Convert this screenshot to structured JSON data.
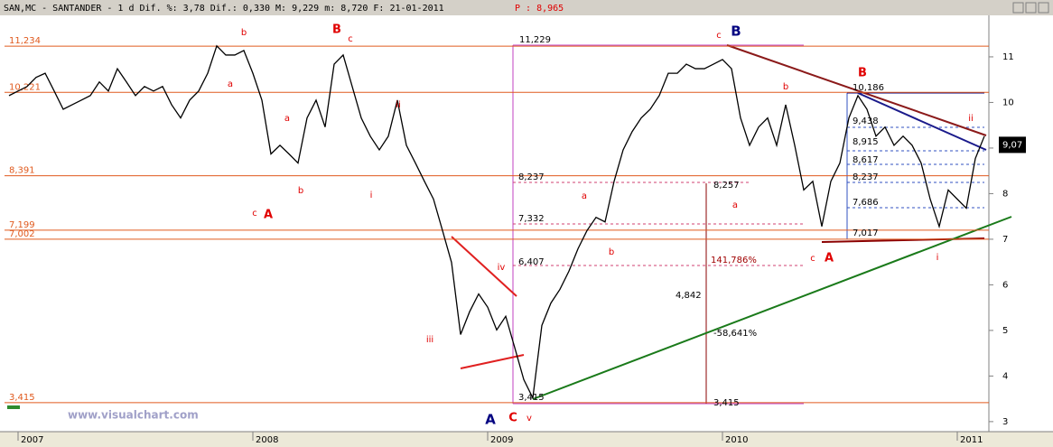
{
  "chart_data": {
    "type": "line",
    "title": "SAN,MC - SANTANDER -  1 d Dif. %: 3,78 Dif.: 0,330 M: 9,229 m: 8,720 F: 21-01-2011",
    "price_label": "P : 8,965",
    "watermark": "www.visualchart.com",
    "color": "#000000",
    "categories": [
      null,
      "2007",
      null,
      null,
      null,
      null,
      null,
      null,
      null,
      null,
      null,
      null,
      null,
      null,
      null,
      null,
      null,
      null,
      null,
      null,
      null,
      null,
      null,
      null,
      null,
      null,
      null,
      "2008",
      null,
      null,
      null,
      null,
      null,
      null,
      null,
      null,
      null,
      null,
      null,
      null,
      null,
      null,
      null,
      null,
      null,
      null,
      null,
      null,
      null,
      null,
      null,
      null,
      null,
      "2009",
      null,
      null,
      null,
      null,
      null,
      null,
      null,
      null,
      null,
      null,
      null,
      null,
      null,
      null,
      null,
      null,
      null,
      null,
      null,
      null,
      null,
      null,
      null,
      null,
      null,
      "2010",
      null,
      null,
      null,
      null,
      null,
      null,
      null,
      null,
      null,
      null,
      null,
      null,
      null,
      null,
      null,
      null,
      null,
      null,
      null,
      null,
      null,
      null,
      null,
      null,
      null,
      "2011",
      null,
      null,
      null
    ],
    "values": [
      10.15,
      10.25,
      10.35,
      10.55,
      10.64,
      10.25,
      9.85,
      9.95,
      10.05,
      10.15,
      10.45,
      10.25,
      10.74,
      10.45,
      10.15,
      10.35,
      10.25,
      10.35,
      9.95,
      9.66,
      10.05,
      10.25,
      10.64,
      11.24,
      11.04,
      11.04,
      11.14,
      10.64,
      10.05,
      8.87,
      9.06,
      8.87,
      8.67,
      9.66,
      10.05,
      9.46,
      10.84,
      11.04,
      10.35,
      9.66,
      9.26,
      8.96,
      9.26,
      10.05,
      9.06,
      8.67,
      8.27,
      7.88,
      7.19,
      6.49,
      4.91,
      5.41,
      5.8,
      5.51,
      5.01,
      5.31,
      4.62,
      3.92,
      3.52,
      5.11,
      5.6,
      5.9,
      6.3,
      6.79,
      7.19,
      7.48,
      7.38,
      8.27,
      8.96,
      9.36,
      9.66,
      9.85,
      10.15,
      10.64,
      10.64,
      10.84,
      10.74,
      10.74,
      10.84,
      10.94,
      10.74,
      9.66,
      9.06,
      9.46,
      9.66,
      9.06,
      9.95,
      9.06,
      8.08,
      8.27,
      7.28,
      8.27,
      8.67,
      9.66,
      10.15,
      9.85,
      9.26,
      9.46,
      9.06,
      9.26,
      9.06,
      8.67,
      7.88,
      7.28,
      8.08,
      7.88,
      7.68,
      8.77,
      9.26
    ],
    "ylim": [
      2.78,
      11.91
    ],
    "yticks": [
      3,
      4,
      5,
      6,
      7,
      8,
      9,
      10,
      11
    ],
    "levels": [
      {
        "value": 11.234,
        "label": "11,234"
      },
      {
        "value": 10.221,
        "label": "10,221"
      },
      {
        "value": 8.391,
        "label": "8,391"
      },
      {
        "value": 7.199,
        "label": "7,199"
      },
      {
        "value": 7.002,
        "label": "7,002"
      },
      {
        "value": 3.415,
        "label": "3,415"
      }
    ],
    "level_color": "#e05a1e",
    "last_price": {
      "value": 9.07,
      "label": "9,07"
    },
    "annotations": [
      "b",
      "a",
      "a",
      "c",
      "A",
      "b",
      "B",
      "c",
      "ii",
      "i",
      "iv",
      "iii",
      "C",
      "v",
      "A",
      "a",
      "b",
      "c",
      "B",
      "b",
      "a",
      "c",
      "A",
      "B",
      "i",
      "ii",
      "11,229",
      "10,186",
      "9,438",
      "8,915",
      "8,617",
      "8,237",
      "7,686",
      "7,017",
      "8,237",
      "7,332",
      "6,407",
      "3,415",
      "8,257",
      "141,786%",
      "4,842",
      "-58,641%",
      "3,415"
    ]
  }
}
